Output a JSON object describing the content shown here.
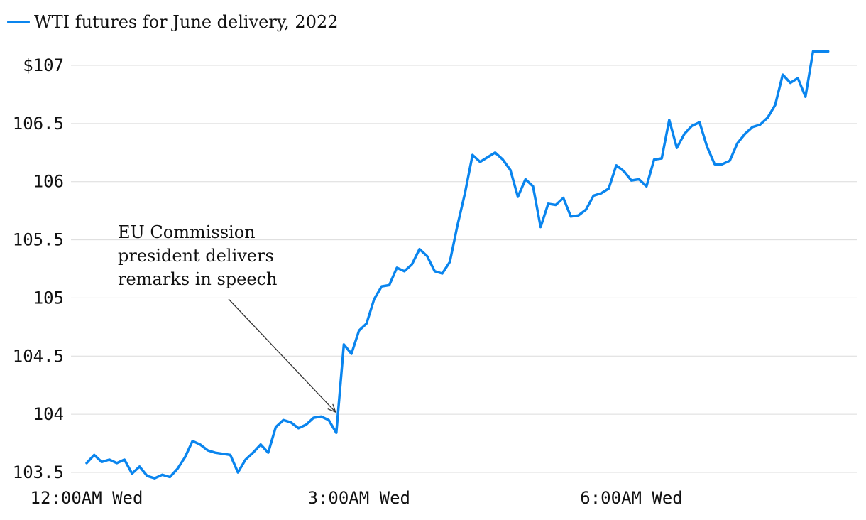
{
  "chart_data": {
    "type": "line",
    "title": "",
    "xlabel": "",
    "ylabel": "",
    "ylim": [
      103.5,
      107
    ],
    "y_ticks": [
      {
        "value": 107,
        "label": "$107"
      },
      {
        "value": 106.5,
        "label": "106.5"
      },
      {
        "value": 106,
        "label": "106"
      },
      {
        "value": 105.5,
        "label": "105.5"
      },
      {
        "value": 105,
        "label": "105"
      },
      {
        "value": 104.5,
        "label": "104.5"
      },
      {
        "value": 104,
        "label": "104"
      },
      {
        "value": 103.5,
        "label": "103.5"
      }
    ],
    "x_unit": "minutes since 12:00AM Wed",
    "xlim": [
      0,
      500
    ],
    "x_ticks": [
      {
        "value": 0,
        "label": "12:00AM Wed"
      },
      {
        "value": 180,
        "label": "3:00AM Wed"
      },
      {
        "value": 360,
        "label": "6:00AM Wed"
      }
    ],
    "grid": true,
    "legend_position": "top-left",
    "series": [
      {
        "name": "WTI futures for June delivery, 2022",
        "color": "#0a85ee",
        "x": [
          0,
          5,
          10,
          15,
          20,
          25,
          30,
          35,
          40,
          45,
          50,
          55,
          60,
          65,
          70,
          75,
          80,
          85,
          90,
          95,
          100,
          105,
          110,
          115,
          120,
          125,
          130,
          135,
          140,
          145,
          150,
          155,
          160,
          165,
          170,
          175,
          180,
          185,
          190,
          195,
          200,
          205,
          210,
          215,
          220,
          225,
          230,
          235,
          240,
          245,
          250,
          255,
          260,
          265,
          270,
          275,
          280,
          285,
          290,
          295,
          300,
          305,
          310,
          315,
          320,
          325,
          330,
          335,
          340,
          345,
          350,
          355,
          360,
          365,
          370,
          375,
          380,
          385,
          390,
          395,
          400,
          405,
          410,
          415,
          420,
          425,
          430,
          435,
          440,
          445,
          450,
          455,
          460,
          465,
          470,
          475,
          480,
          485,
          490
        ],
        "y": [
          103.58,
          103.65,
          103.59,
          103.61,
          103.58,
          103.61,
          103.49,
          103.55,
          103.47,
          103.45,
          103.48,
          103.46,
          103.53,
          103.63,
          103.77,
          103.74,
          103.69,
          103.67,
          103.66,
          103.65,
          103.5,
          103.61,
          103.67,
          103.74,
          103.67,
          103.89,
          103.95,
          103.93,
          103.88,
          103.91,
          103.97,
          103.98,
          103.95,
          103.84,
          104.6,
          104.52,
          104.72,
          104.78,
          104.99,
          105.1,
          105.11,
          105.26,
          105.23,
          105.29,
          105.42,
          105.36,
          105.23,
          105.21,
          105.31,
          105.62,
          105.9,
          106.23,
          106.17,
          106.21,
          106.25,
          106.19,
          106.1,
          105.87,
          106.02,
          105.96,
          105.61,
          105.81,
          105.8,
          105.86,
          105.7,
          105.71,
          105.76,
          105.88,
          105.9,
          105.94,
          106.14,
          106.09,
          106.01,
          106.02,
          105.96,
          106.19,
          106.2,
          106.53,
          106.29,
          106.41,
          106.48,
          106.51,
          106.3,
          106.15,
          106.15,
          106.18,
          106.33,
          106.41,
          106.47,
          106.49,
          106.55,
          106.66,
          106.92,
          106.85,
          106.89,
          106.73,
          107.12,
          107.12,
          107.12
        ]
      }
    ],
    "annotations": [
      {
        "lines": [
          "EU Commission",
          "president delivers",
          "remarks in speech"
        ],
        "target_x": 165,
        "target_y": 104.0
      }
    ]
  }
}
